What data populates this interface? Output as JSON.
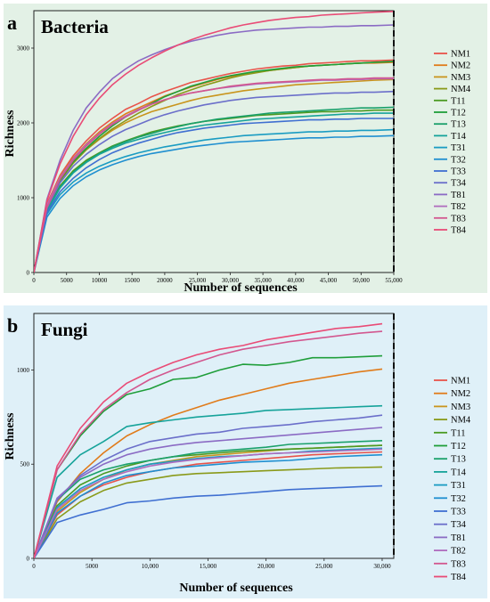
{
  "chart_data": [
    {
      "type": "line",
      "panel_label": "a",
      "title": "Bacteria",
      "xlabel": "Number of sequences",
      "ylabel": "Richness",
      "xlim": [
        0,
        55000
      ],
      "ylim": [
        0,
        3500
      ],
      "x_ticks": [
        0,
        5000,
        10000,
        15000,
        20000,
        25000,
        30000,
        35000,
        40000,
        45000,
        50000,
        55000
      ],
      "x_tick_labels": [
        "0",
        "5000",
        "10000",
        "15000",
        "20000",
        "25,000",
        "30,000",
        "35,000",
        "40,000",
        "45,000",
        "50,000",
        "55,000"
      ],
      "y_ticks": [
        0,
        1000,
        2000,
        3000
      ],
      "y_tick_labels": [
        "0",
        "1000",
        "2000",
        "3000"
      ],
      "dashed_vline_x": 55000,
      "grid": false,
      "legend_position": "right",
      "background": "#e3f1e6",
      "x": [
        0,
        2000,
        4000,
        6000,
        8000,
        10000,
        12000,
        14000,
        16000,
        18000,
        20000,
        22000,
        24000,
        26000,
        28000,
        30000,
        32000,
        34000,
        36000,
        38000,
        40000,
        42000,
        44000,
        46000,
        48000,
        50000,
        52000,
        55000
      ],
      "series": [
        {
          "name": "NM1",
          "color": "#e8534a",
          "values": [
            0,
            920,
            1300,
            1560,
            1760,
            1930,
            2060,
            2180,
            2260,
            2350,
            2420,
            2480,
            2540,
            2580,
            2620,
            2660,
            2690,
            2720,
            2740,
            2760,
            2770,
            2790,
            2800,
            2810,
            2820,
            2830,
            2830,
            2840
          ]
        },
        {
          "name": "NM2",
          "color": "#e07b1a",
          "values": [
            0,
            900,
            1280,
            1530,
            1720,
            1880,
            2010,
            2120,
            2200,
            2280,
            2360,
            2420,
            2480,
            2530,
            2580,
            2620,
            2650,
            2680,
            2700,
            2720,
            2740,
            2760,
            2770,
            2780,
            2790,
            2800,
            2800,
            2810
          ]
        },
        {
          "name": "NM3",
          "color": "#c9951d",
          "values": [
            0,
            880,
            1240,
            1470,
            1640,
            1780,
            1900,
            2000,
            2080,
            2150,
            2200,
            2250,
            2300,
            2340,
            2370,
            2400,
            2430,
            2450,
            2470,
            2490,
            2510,
            2520,
            2530,
            2540,
            2550,
            2560,
            2570,
            2580
          ]
        },
        {
          "name": "NM4",
          "color": "#8a9a1a",
          "values": [
            0,
            860,
            1220,
            1460,
            1640,
            1790,
            1920,
            2030,
            2130,
            2220,
            2300,
            2380,
            2440,
            2500,
            2550,
            2600,
            2640,
            2670,
            2700,
            2720,
            2740,
            2760,
            2770,
            2780,
            2790,
            2800,
            2810,
            2820
          ]
        },
        {
          "name": "T11",
          "color": "#4a9a22",
          "values": [
            0,
            840,
            1160,
            1360,
            1500,
            1600,
            1690,
            1760,
            1820,
            1880,
            1920,
            1960,
            1990,
            2020,
            2040,
            2060,
            2080,
            2100,
            2110,
            2120,
            2130,
            2140,
            2150,
            2150,
            2160,
            2160,
            2170,
            2170
          ]
        },
        {
          "name": "T12",
          "color": "#1f9e3a",
          "values": [
            0,
            880,
            1240,
            1480,
            1660,
            1820,
            1960,
            2080,
            2170,
            2260,
            2350,
            2420,
            2490,
            2540,
            2590,
            2630,
            2660,
            2690,
            2710,
            2730,
            2750,
            2760,
            2770,
            2780,
            2790,
            2800,
            2810,
            2820
          ]
        },
        {
          "name": "T13",
          "color": "#1aa06a",
          "values": [
            0,
            830,
            1140,
            1340,
            1480,
            1590,
            1680,
            1750,
            1810,
            1860,
            1910,
            1950,
            1990,
            2020,
            2050,
            2070,
            2090,
            2110,
            2130,
            2140,
            2150,
            2160,
            2170,
            2180,
            2190,
            2200,
            2200,
            2210
          ]
        },
        {
          "name": "T14",
          "color": "#16a39a",
          "values": [
            0,
            820,
            1130,
            1330,
            1470,
            1580,
            1660,
            1730,
            1780,
            1830,
            1870,
            1910,
            1940,
            1970,
            1990,
            2010,
            2030,
            2050,
            2060,
            2070,
            2080,
            2090,
            2100,
            2110,
            2120,
            2120,
            2130,
            2130
          ]
        },
        {
          "name": "T31",
          "color": "#1a9cc2",
          "values": [
            0,
            780,
            1040,
            1210,
            1330,
            1420,
            1490,
            1550,
            1600,
            1640,
            1680,
            1710,
            1740,
            1770,
            1790,
            1810,
            1830,
            1840,
            1850,
            1860,
            1870,
            1880,
            1880,
            1890,
            1890,
            1900,
            1900,
            1910
          ]
        },
        {
          "name": "T32",
          "color": "#1f8fd0",
          "values": [
            0,
            740,
            990,
            1160,
            1280,
            1370,
            1440,
            1500,
            1550,
            1590,
            1620,
            1650,
            1680,
            1700,
            1720,
            1740,
            1750,
            1760,
            1770,
            1780,
            1790,
            1800,
            1800,
            1810,
            1810,
            1820,
            1820,
            1830
          ]
        },
        {
          "name": "T33",
          "color": "#3f6fd1",
          "values": [
            0,
            800,
            1080,
            1260,
            1400,
            1510,
            1600,
            1670,
            1730,
            1780,
            1830,
            1870,
            1900,
            1930,
            1950,
            1970,
            1990,
            2000,
            2010,
            2020,
            2030,
            2040,
            2040,
            2050,
            2050,
            2060,
            2060,
            2060
          ]
        },
        {
          "name": "T34",
          "color": "#6b6fca",
          "values": [
            0,
            860,
            1200,
            1420,
            1580,
            1710,
            1820,
            1910,
            1980,
            2050,
            2110,
            2160,
            2200,
            2240,
            2270,
            2300,
            2320,
            2340,
            2350,
            2360,
            2370,
            2380,
            2390,
            2400,
            2400,
            2410,
            2410,
            2420
          ]
        },
        {
          "name": "T81",
          "color": "#8b6bc4",
          "values": [
            0,
            980,
            1500,
            1900,
            2200,
            2410,
            2590,
            2720,
            2830,
            2910,
            2980,
            3040,
            3090,
            3130,
            3170,
            3200,
            3220,
            3240,
            3250,
            3260,
            3270,
            3280,
            3280,
            3290,
            3290,
            3300,
            3300,
            3310
          ]
        },
        {
          "name": "T82",
          "color": "#b06dbe",
          "values": [
            0,
            900,
            1270,
            1520,
            1710,
            1860,
            1990,
            2090,
            2180,
            2250,
            2310,
            2360,
            2400,
            2430,
            2460,
            2480,
            2500,
            2520,
            2530,
            2540,
            2550,
            2560,
            2570,
            2570,
            2580,
            2580,
            2590,
            2590
          ]
        },
        {
          "name": "T83",
          "color": "#d2578f",
          "values": [
            0,
            870,
            1250,
            1500,
            1690,
            1850,
            1980,
            2080,
            2170,
            2250,
            2310,
            2360,
            2400,
            2430,
            2460,
            2490,
            2510,
            2530,
            2540,
            2550,
            2560,
            2570,
            2580,
            2580,
            2590,
            2590,
            2600,
            2600
          ]
        },
        {
          "name": "T84",
          "color": "#e94b76",
          "values": [
            0,
            960,
            1450,
            1820,
            2110,
            2330,
            2510,
            2650,
            2770,
            2870,
            2960,
            3040,
            3110,
            3170,
            3220,
            3270,
            3310,
            3340,
            3370,
            3390,
            3410,
            3420,
            3440,
            3450,
            3460,
            3470,
            3480,
            3490
          ]
        }
      ]
    },
    {
      "type": "line",
      "panel_label": "b",
      "title": "Fungi",
      "xlabel": "Number of sequences",
      "ylabel": "Richness",
      "xlim": [
        0,
        31000
      ],
      "ylim": [
        0,
        1300
      ],
      "x_ticks": [
        0,
        5000,
        10000,
        15000,
        20000,
        25000,
        30000
      ],
      "x_tick_labels": [
        "0",
        "5000",
        "10,000",
        "15,000",
        "20,000",
        "25,000",
        "30,000"
      ],
      "y_ticks": [
        0,
        500,
        1000
      ],
      "y_tick_labels": [
        "0",
        "500",
        "1000"
      ],
      "dashed_vline_x": 31000,
      "grid": false,
      "legend_position": "right",
      "background": "#dff0f8",
      "x": [
        0,
        2000,
        4000,
        6000,
        8000,
        10000,
        12000,
        14000,
        16000,
        18000,
        20000,
        22000,
        24000,
        26000,
        28000,
        30000
      ],
      "series": [
        {
          "name": "NM1",
          "color": "#e8534a",
          "values": [
            0,
            230,
            330,
            390,
            430,
            460,
            480,
            500,
            510,
            520,
            530,
            540,
            550,
            555,
            560,
            565
          ]
        },
        {
          "name": "NM2",
          "color": "#e07b1a",
          "values": [
            0,
            300,
            450,
            560,
            650,
            710,
            760,
            800,
            840,
            870,
            900,
            930,
            950,
            970,
            990,
            1005
          ]
        },
        {
          "name": "NM3",
          "color": "#c9951d",
          "values": [
            0,
            250,
            350,
            420,
            470,
            500,
            520,
            540,
            550,
            560,
            570,
            580,
            585,
            590,
            595,
            600
          ]
        },
        {
          "name": "NM4",
          "color": "#8a9a1a",
          "values": [
            0,
            210,
            300,
            360,
            400,
            420,
            440,
            450,
            455,
            460,
            465,
            470,
            475,
            480,
            482,
            485
          ]
        },
        {
          "name": "T11",
          "color": "#4a9a22",
          "values": [
            0,
            280,
            390,
            450,
            490,
            520,
            540,
            550,
            560,
            570,
            575,
            580,
            585,
            590,
            595,
            600
          ]
        },
        {
          "name": "T12",
          "color": "#1f9e3a",
          "values": [
            0,
            470,
            650,
            780,
            870,
            900,
            950,
            960,
            1000,
            1030,
            1025,
            1040,
            1065,
            1065,
            1070,
            1075
          ]
        },
        {
          "name": "T13",
          "color": "#1aa06a",
          "values": [
            0,
            310,
            420,
            470,
            500,
            520,
            540,
            560,
            570,
            580,
            590,
            605,
            610,
            615,
            620,
            625
          ]
        },
        {
          "name": "T14",
          "color": "#16a39a",
          "values": [
            0,
            430,
            550,
            620,
            700,
            720,
            735,
            750,
            760,
            770,
            785,
            790,
            795,
            800,
            805,
            810
          ]
        },
        {
          "name": "T31",
          "color": "#1a9cc2",
          "values": [
            0,
            270,
            370,
            430,
            470,
            500,
            515,
            530,
            540,
            545,
            555,
            560,
            570,
            575,
            580,
            585
          ]
        },
        {
          "name": "T32",
          "color": "#1f8fd0",
          "values": [
            0,
            240,
            330,
            400,
            440,
            460,
            480,
            490,
            500,
            510,
            515,
            520,
            530,
            540,
            545,
            550
          ]
        },
        {
          "name": "T33",
          "color": "#3f6fd1",
          "values": [
            0,
            190,
            230,
            260,
            295,
            305,
            320,
            330,
            335,
            345,
            355,
            365,
            370,
            375,
            380,
            385
          ]
        },
        {
          "name": "T34",
          "color": "#6b6fca",
          "values": [
            0,
            310,
            440,
            520,
            580,
            620,
            640,
            660,
            670,
            690,
            700,
            710,
            725,
            735,
            745,
            760
          ]
        },
        {
          "name": "T81",
          "color": "#8b6bc4",
          "values": [
            0,
            320,
            430,
            500,
            550,
            580,
            600,
            615,
            625,
            635,
            645,
            655,
            665,
            675,
            685,
            695
          ]
        },
        {
          "name": "T82",
          "color": "#b06dbe",
          "values": [
            0,
            260,
            360,
            420,
            460,
            490,
            510,
            525,
            535,
            545,
            555,
            560,
            565,
            570,
            575,
            580
          ]
        },
        {
          "name": "T83",
          "color": "#d2578f",
          "values": [
            0,
            470,
            660,
            790,
            880,
            950,
            1000,
            1040,
            1080,
            1110,
            1130,
            1150,
            1165,
            1180,
            1195,
            1205
          ]
        },
        {
          "name": "T84",
          "color": "#e94b76",
          "values": [
            0,
            490,
            690,
            830,
            930,
            990,
            1040,
            1080,
            1110,
            1130,
            1160,
            1180,
            1200,
            1220,
            1230,
            1245
          ]
        }
      ]
    }
  ]
}
